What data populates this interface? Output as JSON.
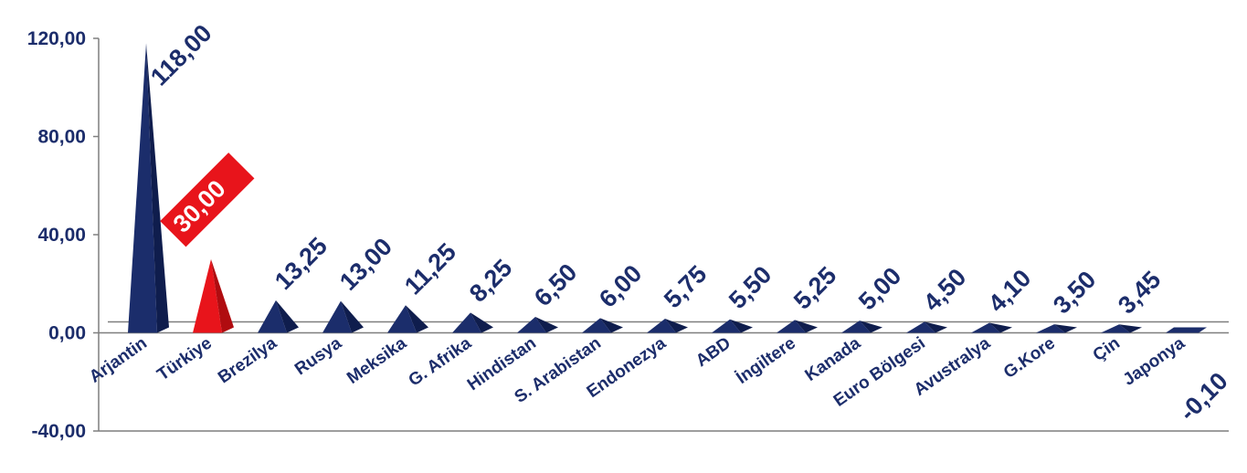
{
  "chart_data": {
    "type": "bar",
    "categories": [
      "Arjantin",
      "Türkiye",
      "Brezilya",
      "Rusya",
      "Meksika",
      "G. Afrika",
      "Hindistan",
      "S. Arabistan",
      "Endonezya",
      "ABD",
      "İngiltere",
      "Kanada",
      "Euro Bölgesi",
      "Avustralya",
      "G.Kore",
      "Çin",
      "Japonya"
    ],
    "values": [
      118.0,
      30.0,
      13.25,
      13.0,
      11.25,
      8.25,
      6.5,
      6.0,
      5.75,
      5.5,
      5.25,
      5.0,
      4.5,
      4.1,
      3.5,
      3.45,
      -0.1
    ],
    "value_labels": [
      "118,00",
      "30,00",
      "13,25",
      "13,00",
      "11,25",
      "8,25",
      "6,50",
      "6,00",
      "5,75",
      "5,50",
      "5,25",
      "5,00",
      "4,50",
      "4,10",
      "3,50",
      "3,45",
      "-0,10"
    ],
    "y_ticks": [
      {
        "value": -40,
        "label": "-40,00"
      },
      {
        "value": 0,
        "label": "0,00"
      },
      {
        "value": 40,
        "label": "40,00"
      },
      {
        "value": 80,
        "label": "80,00"
      },
      {
        "value": 120,
        "label": "120,00"
      }
    ],
    "ylim": [
      -40,
      120
    ],
    "highlight_index": 1,
    "colors": {
      "bar": "#1b2d6b",
      "bar_dark": "#0f1d4d",
      "highlight": "#e8141b",
      "highlight_dark": "#b00c10",
      "text": "#1c2d6b",
      "axis": "#7f7f7f"
    },
    "grid": false,
    "legend": "none"
  }
}
